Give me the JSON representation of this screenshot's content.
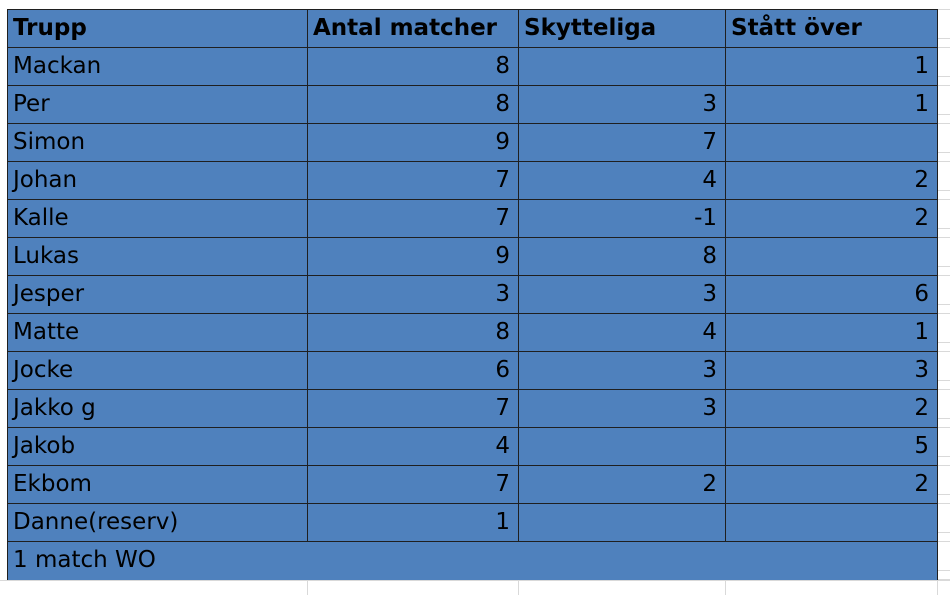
{
  "table": {
    "headers": [
      "Trupp",
      "Antal matcher",
      "Skytteliga",
      "Stått över"
    ],
    "rows": [
      {
        "name": "Mackan",
        "matcher": "8",
        "skytteliga": "",
        "statt": "1"
      },
      {
        "name": "Per",
        "matcher": "8",
        "skytteliga": "3",
        "statt": "1"
      },
      {
        "name": "Simon",
        "matcher": "9",
        "skytteliga": "7",
        "statt": ""
      },
      {
        "name": "Johan",
        "matcher": "7",
        "skytteliga": "4",
        "statt": "2"
      },
      {
        "name": "Kalle",
        "matcher": "7",
        "skytteliga": "-1",
        "statt": "2"
      },
      {
        "name": "Lukas",
        "matcher": "9",
        "skytteliga": "8",
        "statt": ""
      },
      {
        "name": "Jesper",
        "matcher": "3",
        "skytteliga": "3",
        "statt": "6"
      },
      {
        "name": "Matte",
        "matcher": "8",
        "skytteliga": "4",
        "statt": "1"
      },
      {
        "name": "Jocke",
        "matcher": "6",
        "skytteliga": "3",
        "statt": "3"
      },
      {
        "name": "Jakko g",
        "matcher": "7",
        "skytteliga": "3",
        "statt": "2"
      },
      {
        "name": "Jakob",
        "matcher": "4",
        "skytteliga": "",
        "statt": "5"
      },
      {
        "name": "Ekbom",
        "matcher": "7",
        "skytteliga": "2",
        "statt": "2"
      },
      {
        "name": "Danne(reserv)",
        "matcher": "1",
        "skytteliga": "",
        "statt": ""
      }
    ],
    "note": "1 match WO"
  },
  "colors": {
    "cell_fill": "#4f81bd",
    "cell_border": "#1f1f1f",
    "gridline": "#d9d9d9"
  }
}
